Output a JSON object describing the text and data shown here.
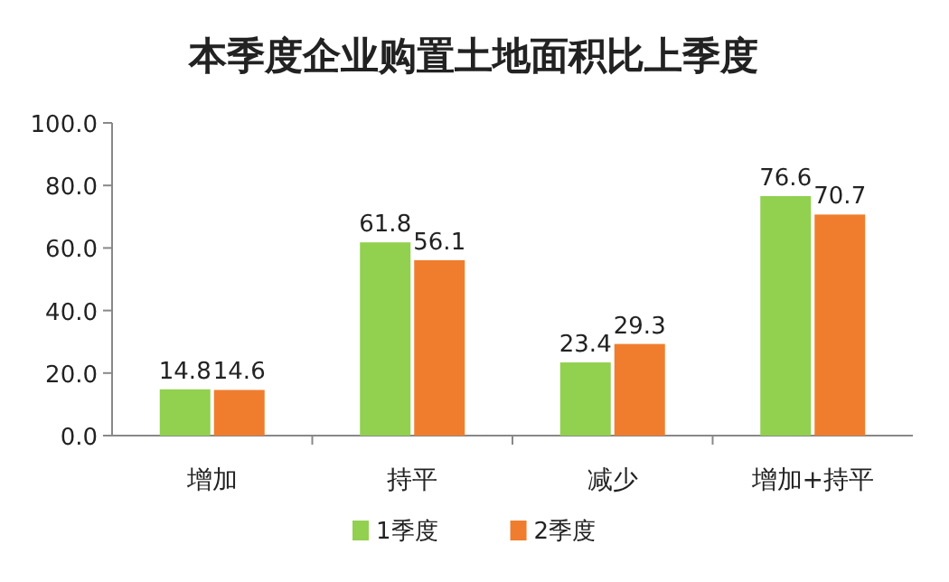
{
  "chart_data": {
    "type": "bar",
    "title": "本季度企业购置土地面积比上季度",
    "categories": [
      "增加",
      "持平",
      "减少",
      "增加+持平"
    ],
    "series": [
      {
        "name": "1季度",
        "color": "#92d050",
        "values": [
          14.8,
          61.8,
          23.4,
          76.6
        ]
      },
      {
        "name": "2季度",
        "color": "#f07d2e",
        "values": [
          14.6,
          56.1,
          29.3,
          70.7
        ]
      }
    ],
    "ylim": [
      0,
      100
    ],
    "yticks": [
      {
        "value": 0,
        "label": "0.0"
      },
      {
        "value": 20,
        "label": "20.0"
      },
      {
        "value": 40,
        "label": "40.0"
      },
      {
        "value": 60,
        "label": "60.0"
      },
      {
        "value": 80,
        "label": "80.0"
      },
      {
        "value": 100,
        "label": "100.0"
      }
    ],
    "data_labels": true,
    "legend": "bottom"
  }
}
